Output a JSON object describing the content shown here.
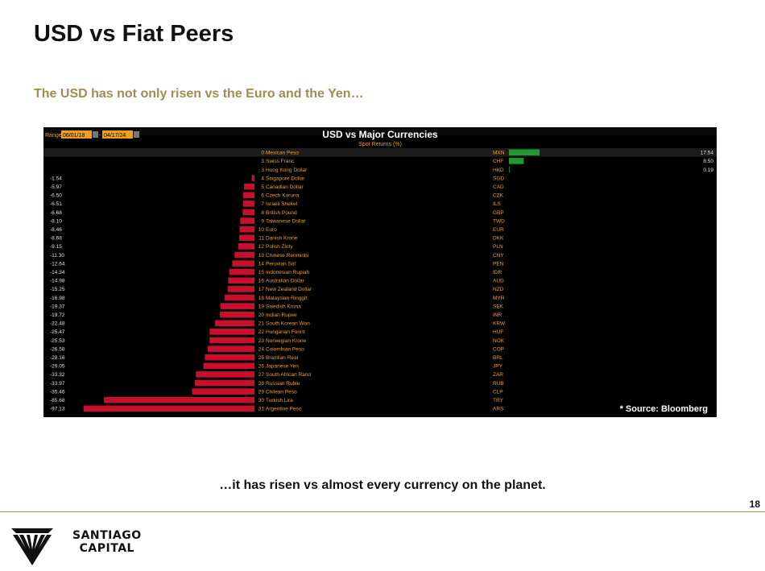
{
  "slide": {
    "title": "USD vs Fiat Peers",
    "subtitle": "The USD has not only risen vs the Euro and the Yen…",
    "conclusion": "…it has risen vs almost every currency on the planet.",
    "page_number": "18",
    "logo": {
      "line1": "SANTIAGO",
      "line2": "CAPITAL"
    }
  },
  "colors": {
    "negative": "#c8102e",
    "positive": "#1f9a2e",
    "label": "#f0a020",
    "accent": "#a08c52"
  },
  "chart_data": {
    "type": "bar",
    "title": "USD vs Major Currencies",
    "subtitle": "Spot Returns (%)",
    "range": {
      "label": "Range",
      "start": "06/01/18",
      "end": "04/17/24"
    },
    "source": "* Source: Bloomberg",
    "xlabel": "",
    "ylabel": "",
    "rows": [
      {
        "rank": "0",
        "name": "Mexican Peso",
        "code": "MXN",
        "value": 17.54
      },
      {
        "rank": "3",
        "name": "Swiss Franc",
        "code": "CHF",
        "value": 8.5
      },
      {
        "rank": "3",
        "name": "Hong Kong Dollar",
        "code": "HKD",
        "value": 0.19
      },
      {
        "rank": "4",
        "name": "Singapore Dollar",
        "code": "SGD",
        "value": -1.54
      },
      {
        "rank": "5",
        "name": "Canadian Dollar",
        "code": "CAD",
        "value": -5.97
      },
      {
        "rank": "6",
        "name": "Czech Koruna",
        "code": "CZK",
        "value": -6.5
      },
      {
        "rank": "7",
        "name": "Israeli Shekel",
        "code": "ILS",
        "value": -6.51
      },
      {
        "rank": "8",
        "name": "British Pound",
        "code": "GBP",
        "value": -6.68
      },
      {
        "rank": "9",
        "name": "Taiwanese Dollar",
        "code": "TWD",
        "value": -8.1
      },
      {
        "rank": "10",
        "name": "Euro",
        "code": "EUR",
        "value": -8.46
      },
      {
        "rank": "11",
        "name": "Danish Krone",
        "code": "DKK",
        "value": -8.68
      },
      {
        "rank": "12",
        "name": "Polish Zloty",
        "code": "PLN",
        "value": -9.15
      },
      {
        "rank": "13",
        "name": "Chinese Renminbi",
        "code": "CNY",
        "value": -11.3
      },
      {
        "rank": "14",
        "name": "Peruvian Sol",
        "code": "PEN",
        "value": -12.64
      },
      {
        "rank": "15",
        "name": "Indonesian Rupiah",
        "code": "IDR",
        "value": -14.34
      },
      {
        "rank": "16",
        "name": "Australian Dollar",
        "code": "AUD",
        "value": -14.98
      },
      {
        "rank": "17",
        "name": "New Zealand Dollar",
        "code": "NZD",
        "value": -15.25
      },
      {
        "rank": "18",
        "name": "Malaysian Ringgit",
        "code": "MYR",
        "value": -16.98
      },
      {
        "rank": "19",
        "name": "Swedish Krona",
        "code": "SEK",
        "value": -19.37
      },
      {
        "rank": "20",
        "name": "Indian Rupee",
        "code": "INR",
        "value": -19.72
      },
      {
        "rank": "21",
        "name": "South Korean Won",
        "code": "KRW",
        "value": -22.48
      },
      {
        "rank": "22",
        "name": "Hungarian Forint",
        "code": "HUF",
        "value": -25.47
      },
      {
        "rank": "23",
        "name": "Norwegian Krone",
        "code": "NOK",
        "value": -25.53
      },
      {
        "rank": "24",
        "name": "Colombian Peso",
        "code": "COP",
        "value": -26.58
      },
      {
        "rank": "25",
        "name": "Brazilian Real",
        "code": "BRL",
        "value": -28.16
      },
      {
        "rank": "26",
        "name": "Japanese Yen",
        "code": "JPY",
        "value": -29.05
      },
      {
        "rank": "27",
        "name": "South African Rand",
        "code": "ZAR",
        "value": -33.32
      },
      {
        "rank": "28",
        "name": "Russian Ruble",
        "code": "RUB",
        "value": -33.97
      },
      {
        "rank": "29",
        "name": "Chilean Peso",
        "code": "CLP",
        "value": -35.46
      },
      {
        "rank": "30",
        "name": "Turkish Lira",
        "code": "TRY",
        "value": -85.68
      },
      {
        "rank": "31",
        "name": "Argentine Peso",
        "code": "ARS",
        "value": -97.13
      }
    ]
  }
}
